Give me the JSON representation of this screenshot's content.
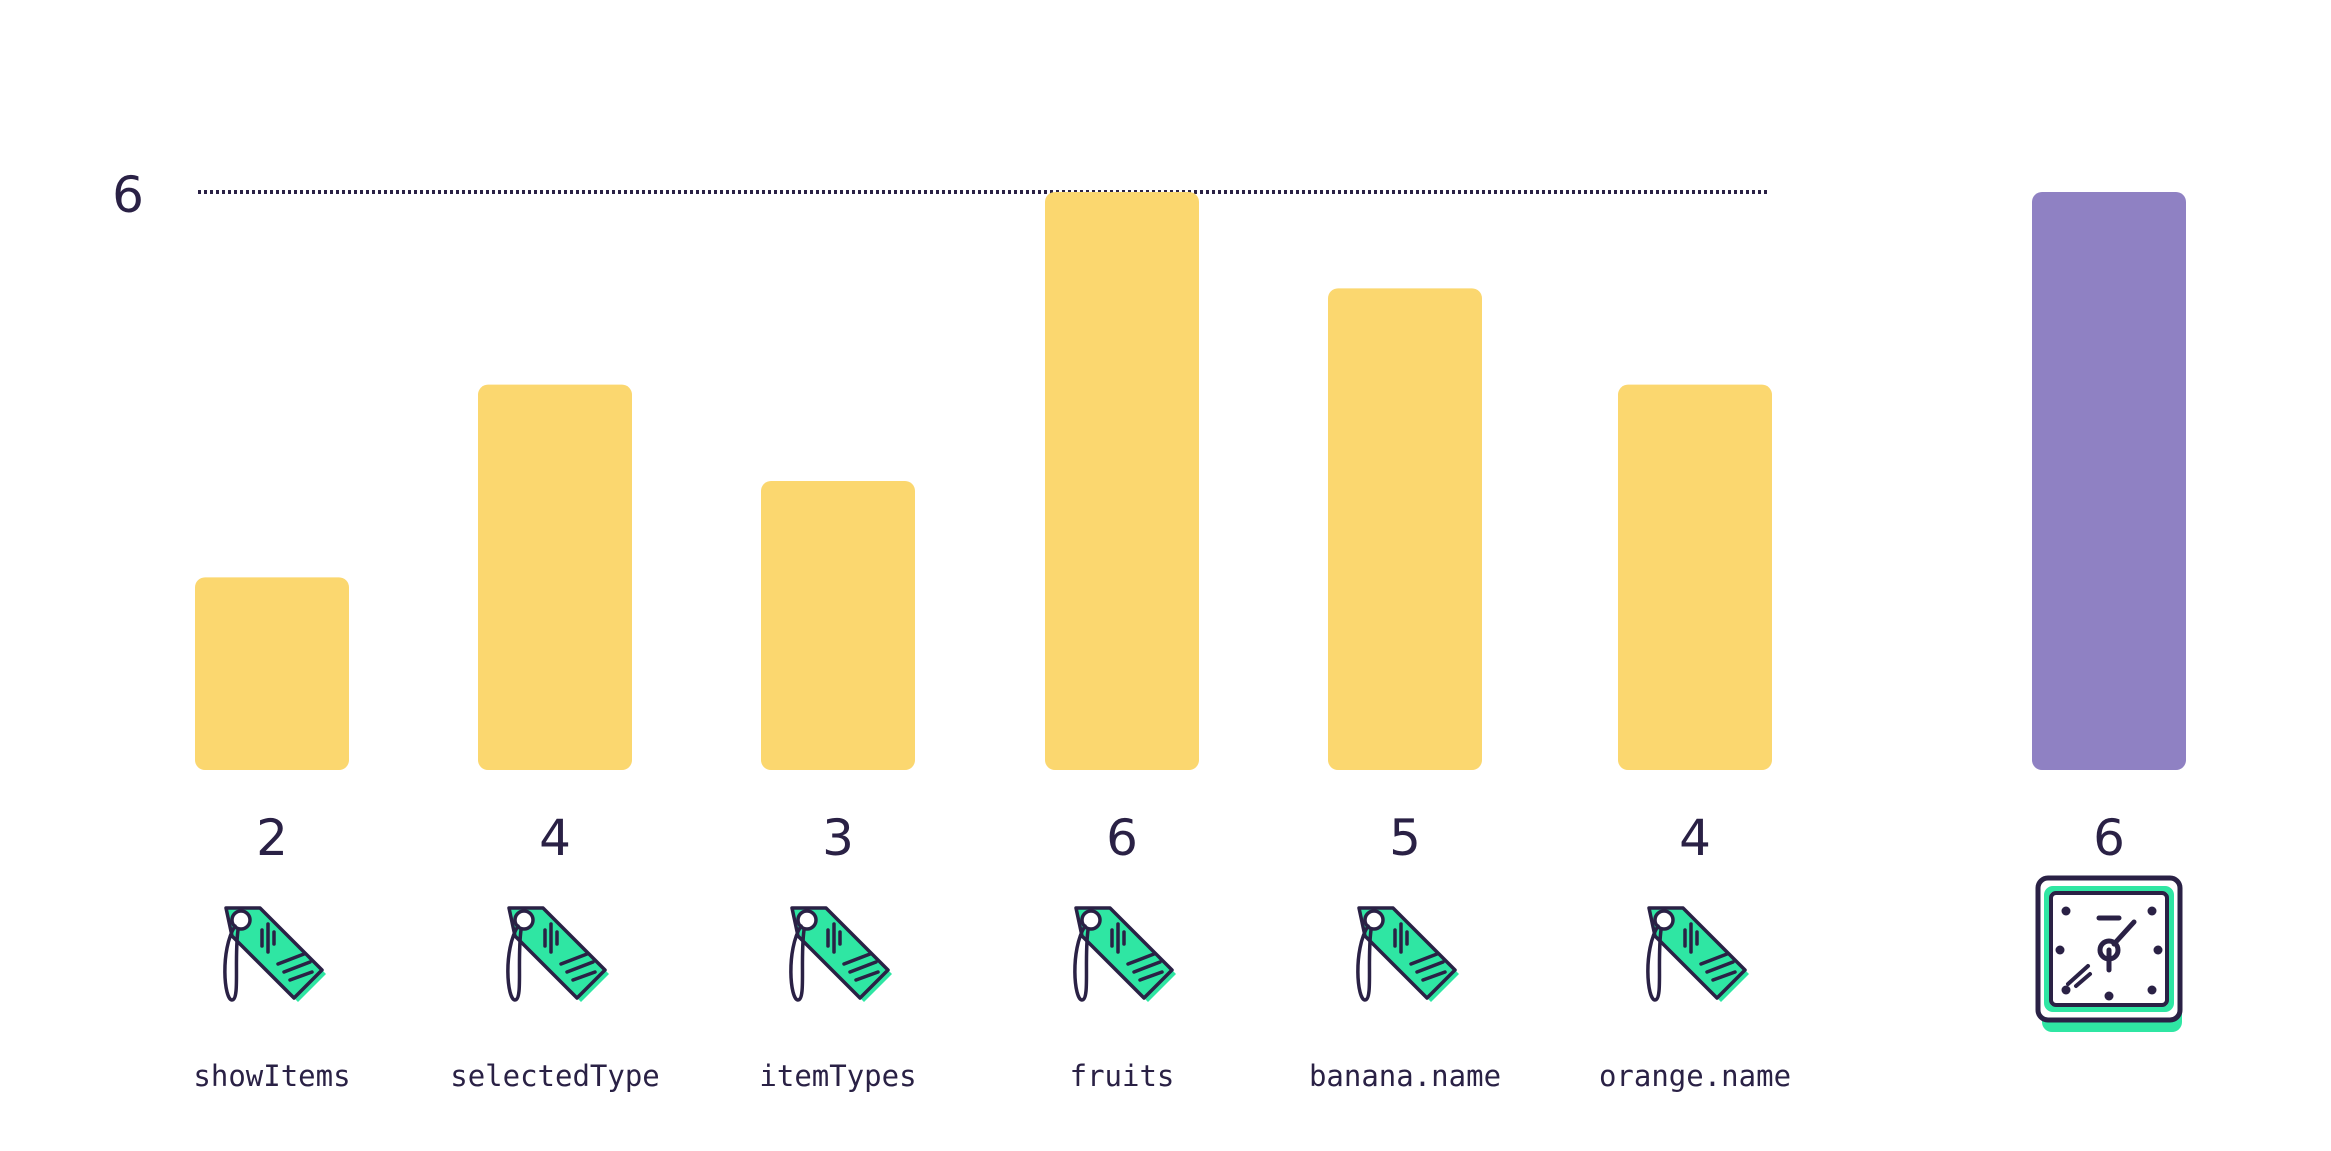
{
  "chart_data": {
    "type": "bar",
    "max_line": {
      "value": 6,
      "label": "6"
    },
    "categories": [
      "showItems",
      "selectedType",
      "itemTypes",
      "fruits",
      "banana.name",
      "orange.name"
    ],
    "values": [
      2,
      4,
      3,
      6,
      5,
      4
    ],
    "value_labels": [
      "2",
      "4",
      "3",
      "6",
      "5",
      "4"
    ],
    "total": {
      "value": 6,
      "label": "6"
    },
    "ylim": [
      0,
      6
    ],
    "legend": "none",
    "grid": false
  },
  "colors": {
    "bar": "#fbd76f",
    "total_bar": "#8f81c3",
    "icon_fill": "#2fe6a3",
    "ink": "#2a2145"
  },
  "icons": {
    "category_icon": "price-tag-icon",
    "total_icon": "clock-icon"
  }
}
